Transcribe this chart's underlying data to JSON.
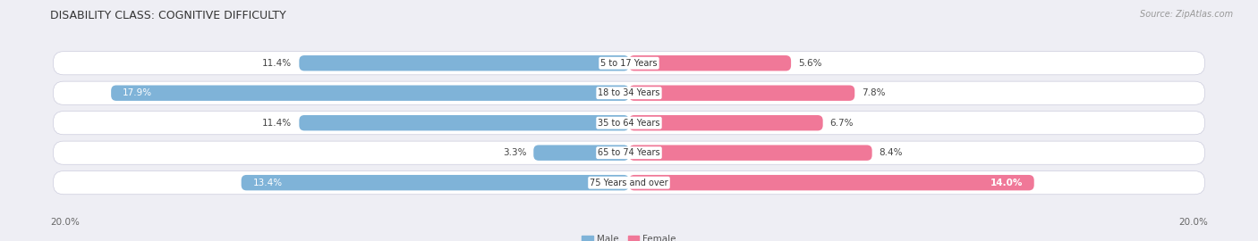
{
  "title": "DISABILITY CLASS: COGNITIVE DIFFICULTY",
  "source": "Source: ZipAtlas.com",
  "categories": [
    "5 to 17 Years",
    "18 to 34 Years",
    "35 to 64 Years",
    "65 to 74 Years",
    "75 Years and over"
  ],
  "male_values": [
    11.4,
    17.9,
    11.4,
    3.3,
    13.4
  ],
  "female_values": [
    5.6,
    7.8,
    6.7,
    8.4,
    14.0
  ],
  "male_color": "#7fb3d8",
  "female_color": "#f07898",
  "male_label": "Male",
  "female_label": "Female",
  "xlim": 20.0,
  "axis_label_left": "20.0%",
  "axis_label_right": "20.0%",
  "bg_color": "#eeeef4",
  "row_bg_color": "#e2e2ea",
  "bar_white_bg": "#ffffff",
  "title_fontsize": 9,
  "source_fontsize": 7,
  "bar_label_fontsize": 7.5,
  "category_fontsize": 7,
  "legend_fontsize": 7.5,
  "axis_tick_fontsize": 7.5
}
